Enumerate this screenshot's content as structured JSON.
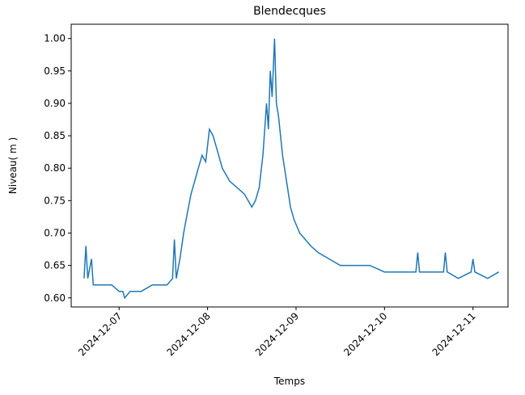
{
  "chart_data": {
    "type": "line",
    "title": "Blendecques",
    "xlabel": "Temps",
    "ylabel": "Niveau( m )",
    "x": [
      "2024-12-06T14:30",
      "2024-12-06T15:00",
      "2024-12-06T15:30",
      "2024-12-06T16:30",
      "2024-12-06T17:00",
      "2024-12-06T18:00",
      "2024-12-06T20:00",
      "2024-12-06T22:00",
      "2024-12-07T00:00",
      "2024-12-07T01:00",
      "2024-12-07T01:30",
      "2024-12-07T03:00",
      "2024-12-07T06:00",
      "2024-12-07T09:00",
      "2024-12-07T11:00",
      "2024-12-07T13:00",
      "2024-12-07T14:30",
      "2024-12-07T15:00",
      "2024-12-07T15:30",
      "2024-12-07T16:30",
      "2024-12-07T17:30",
      "2024-12-07T18:30",
      "2024-12-07T19:30",
      "2024-12-07T20:30",
      "2024-12-07T21:30",
      "2024-12-07T22:30",
      "2024-12-07T23:30",
      "2024-12-08T00:30",
      "2024-12-08T01:30",
      "2024-12-08T02:30",
      "2024-12-08T04:00",
      "2024-12-08T06:00",
      "2024-12-08T08:00",
      "2024-12-08T10:00",
      "2024-12-08T12:00",
      "2024-12-08T13:00",
      "2024-12-08T14:00",
      "2024-12-08T15:00",
      "2024-12-08T16:00",
      "2024-12-08T16:30",
      "2024-12-08T17:00",
      "2024-12-08T17:30",
      "2024-12-08T18:10",
      "2024-12-08T18:40",
      "2024-12-08T19:15",
      "2024-12-08T20:20",
      "2024-12-08T21:25",
      "2024-12-08T22:30",
      "2024-12-08T23:30",
      "2024-12-09T01:00",
      "2024-12-09T02:30",
      "2024-12-09T04:00",
      "2024-12-09T06:00",
      "2024-12-09T09:00",
      "2024-12-09T12:00",
      "2024-12-09T16:00",
      "2024-12-09T20:00",
      "2024-12-10T00:00",
      "2024-12-10T04:00",
      "2024-12-10T08:30",
      "2024-12-10T09:00",
      "2024-12-10T09:30",
      "2024-12-10T13:00",
      "2024-12-10T16:00",
      "2024-12-10T16:30",
      "2024-12-10T17:00",
      "2024-12-10T20:00",
      "2024-12-10T23:30",
      "2024-12-11T00:00",
      "2024-12-11T00:30",
      "2024-12-11T04:00",
      "2024-12-11T07:00"
    ],
    "series": [
      {
        "name": "Niveau",
        "color": "#1f77b4",
        "values": [
          0.63,
          0.68,
          0.63,
          0.66,
          0.62,
          0.62,
          0.62,
          0.62,
          0.61,
          0.61,
          0.6,
          0.61,
          0.61,
          0.62,
          0.62,
          0.62,
          0.63,
          0.69,
          0.63,
          0.66,
          0.7,
          0.73,
          0.76,
          0.78,
          0.8,
          0.82,
          0.81,
          0.86,
          0.85,
          0.83,
          0.8,
          0.78,
          0.77,
          0.76,
          0.74,
          0.75,
          0.77,
          0.82,
          0.9,
          0.86,
          0.95,
          0.91,
          1.0,
          0.9,
          0.88,
          0.82,
          0.78,
          0.74,
          0.72,
          0.7,
          0.69,
          0.68,
          0.67,
          0.66,
          0.65,
          0.65,
          0.65,
          0.64,
          0.64,
          0.64,
          0.67,
          0.64,
          0.64,
          0.64,
          0.67,
          0.64,
          0.63,
          0.64,
          0.66,
          0.64,
          0.63,
          0.64
        ]
      }
    ],
    "xlim": [
      "2024-12-06T11:00",
      "2024-12-11T09:30"
    ],
    "xticks": [
      "2024-12-07",
      "2024-12-08",
      "2024-12-09",
      "2024-12-10",
      "2024-12-11"
    ],
    "ylim": [
      0.586,
      1.022
    ],
    "yticks": [
      {
        "value": 0.6,
        "label": "0.60"
      },
      {
        "value": 0.65,
        "label": "0.65"
      },
      {
        "value": 0.7,
        "label": "0.70"
      },
      {
        "value": 0.75,
        "label": "0.75"
      },
      {
        "value": 0.8,
        "label": "0.80"
      },
      {
        "value": 0.85,
        "label": "0.85"
      },
      {
        "value": 0.9,
        "label": "0.90"
      },
      {
        "value": 0.95,
        "label": "0.95"
      },
      {
        "value": 1.0,
        "label": "1.00"
      }
    ]
  }
}
